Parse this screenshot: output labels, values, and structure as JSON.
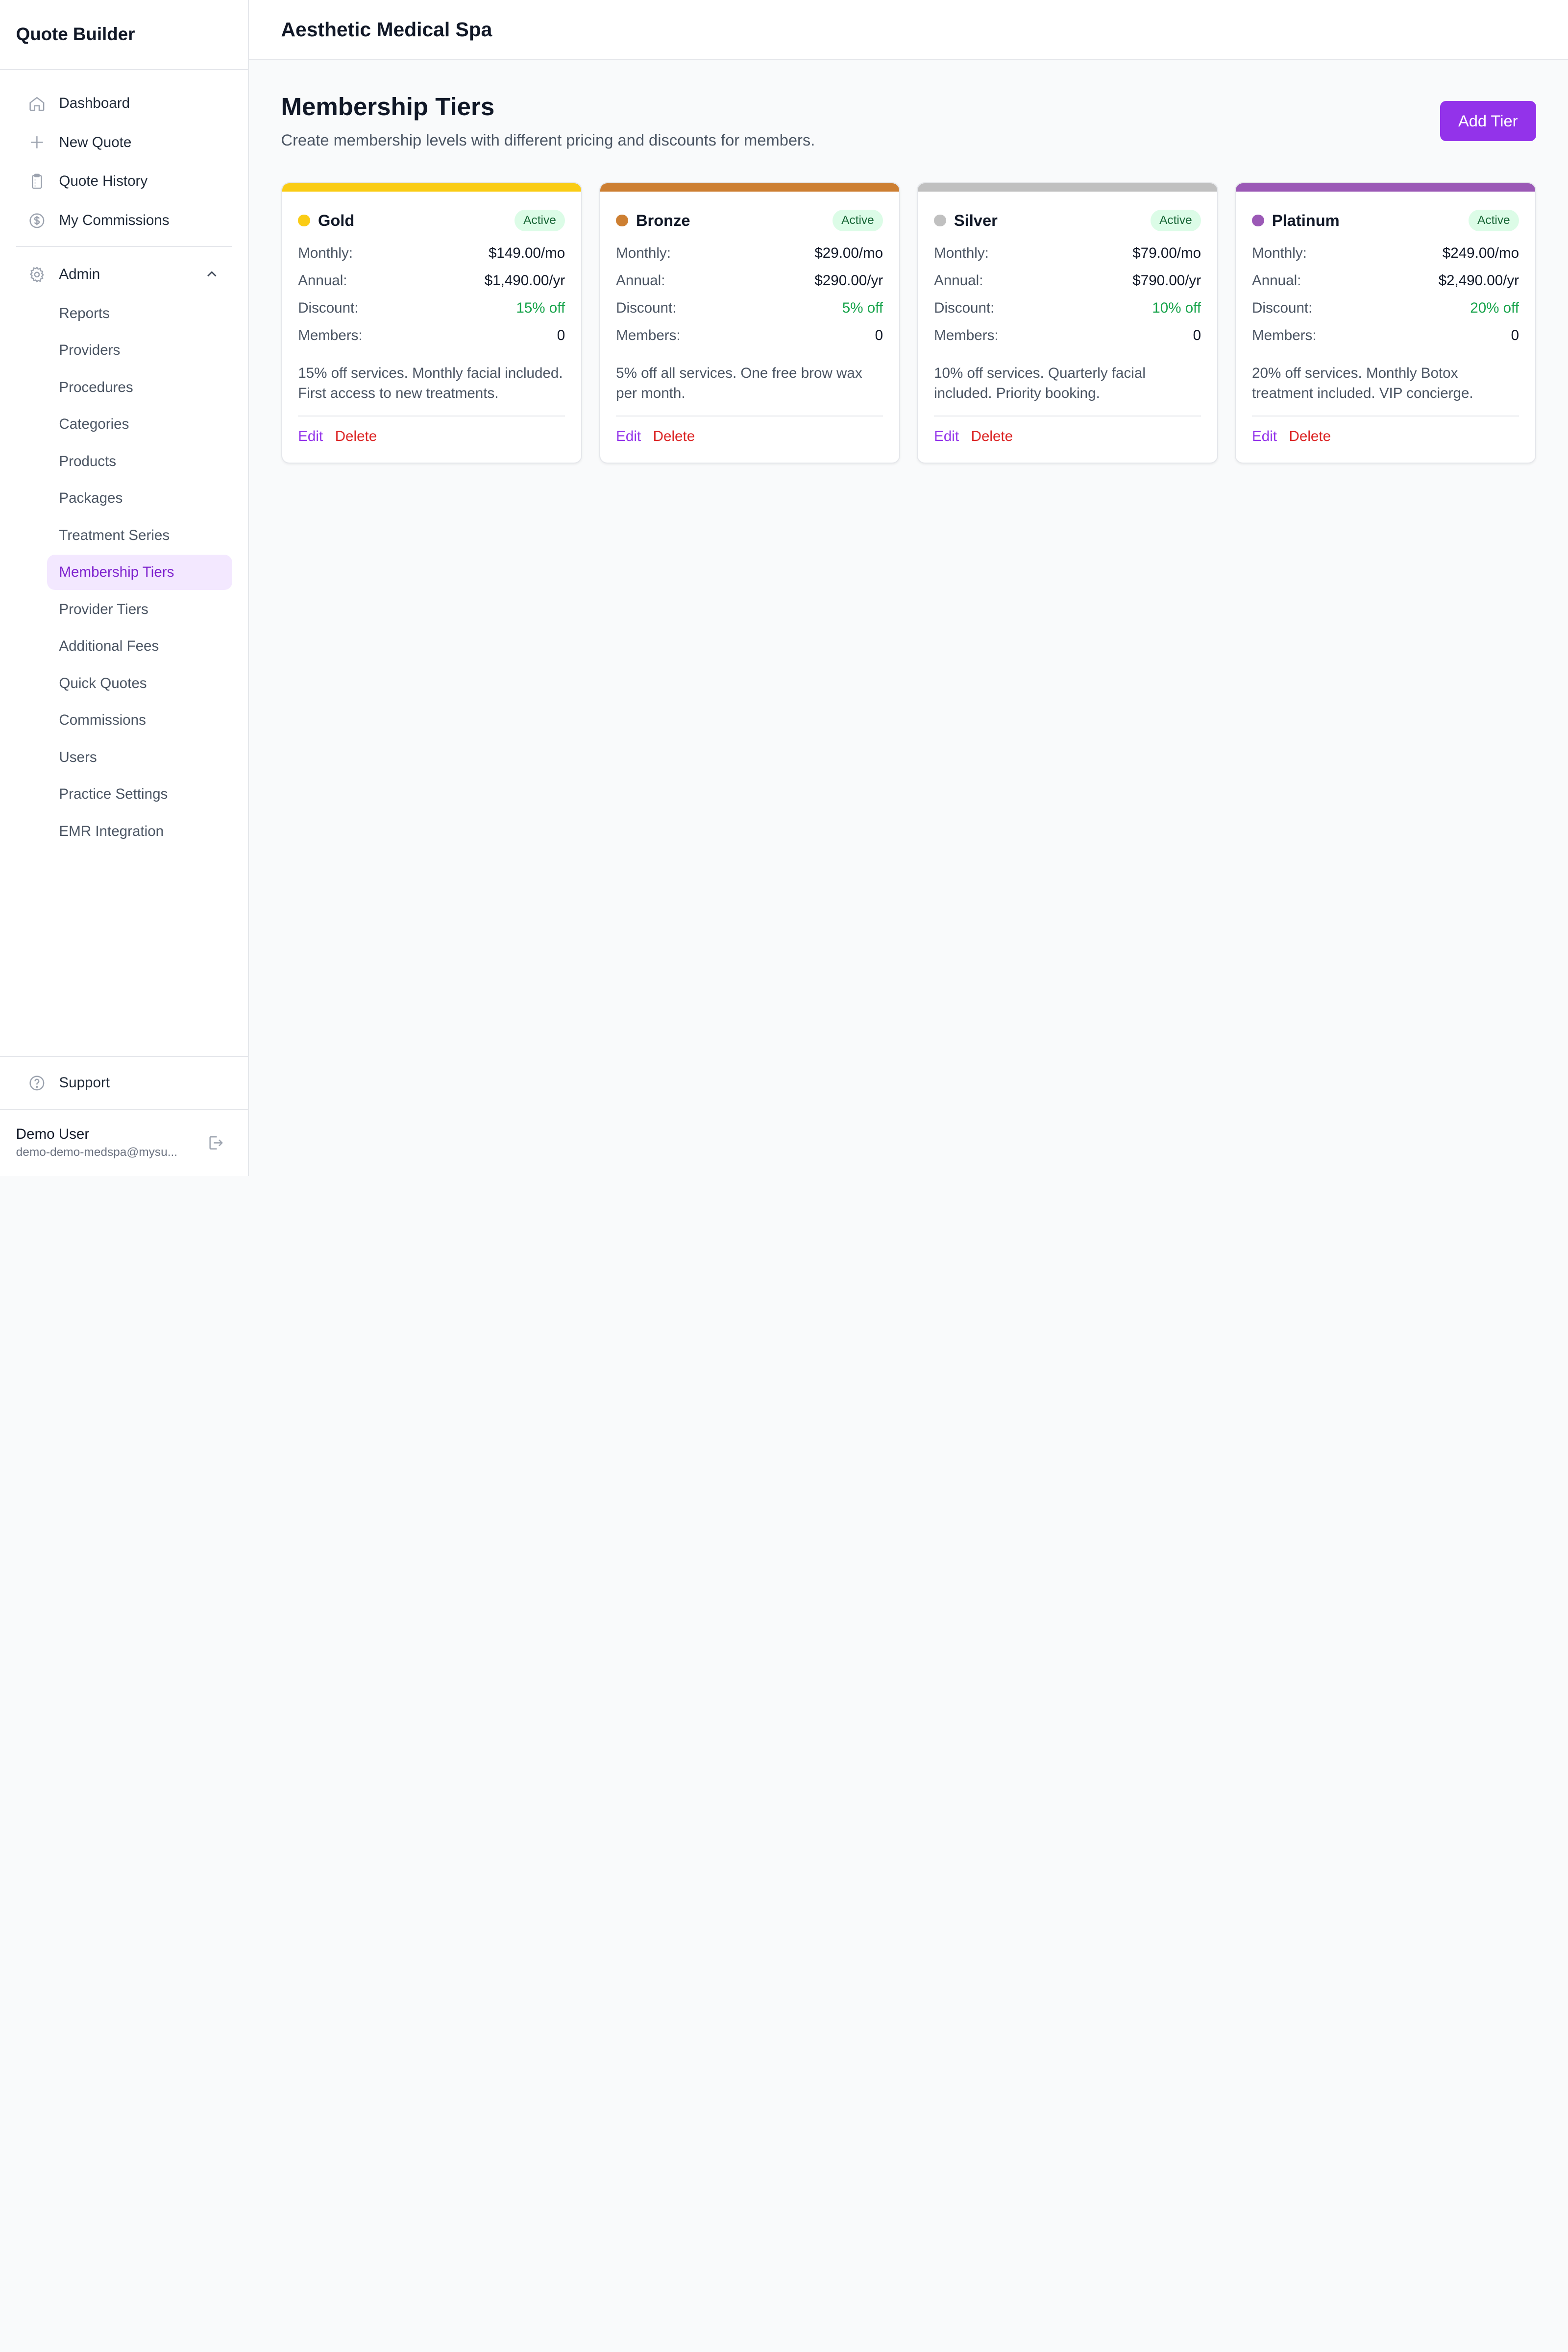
{
  "sidebar": {
    "brand": "Quote Builder",
    "nav": [
      {
        "label": "Dashboard",
        "icon": "home-icon"
      },
      {
        "label": "New Quote",
        "icon": "plus-icon"
      },
      {
        "label": "Quote History",
        "icon": "clipboard-icon"
      },
      {
        "label": "My Commissions",
        "icon": "dollar-icon"
      }
    ],
    "admin_label": "Admin",
    "admin_items": [
      "Reports",
      "Providers",
      "Procedures",
      "Categories",
      "Products",
      "Packages",
      "Treatment Series",
      "Membership Tiers",
      "Provider Tiers",
      "Additional Fees",
      "Quick Quotes",
      "Commissions",
      "Users",
      "Practice Settings",
      "EMR Integration"
    ],
    "active_item": "Membership Tiers",
    "support_label": "Support",
    "user": {
      "name": "Demo User",
      "email": "demo-demo-medspa@mysu..."
    }
  },
  "header": {
    "title": "Aesthetic Medical Spa"
  },
  "page": {
    "title": "Membership Tiers",
    "subtitle": "Create membership levels with different pricing and discounts for members.",
    "add_label": "Add Tier"
  },
  "labels": {
    "monthly": "Monthly:",
    "annual": "Annual:",
    "discount": "Discount:",
    "members": "Members:",
    "edit": "Edit",
    "delete": "Delete"
  },
  "colors": {
    "accent": "#9333ea",
    "danger": "#dc2626",
    "success": "#16a34a"
  },
  "tiers": [
    {
      "name": "Gold",
      "color": "#facc15",
      "status": "Active",
      "monthly": "$149.00/mo",
      "annual": "$1,490.00/yr",
      "discount": "15% off",
      "members": "0",
      "description": "15% off services. Monthly facial included. First access to new treatments."
    },
    {
      "name": "Bronze",
      "color": "#cd7f32",
      "status": "Active",
      "monthly": "$29.00/mo",
      "annual": "$290.00/yr",
      "discount": "5% off",
      "members": "0",
      "description": "5% off all services. One free brow wax per month."
    },
    {
      "name": "Silver",
      "color": "#c0c0c0",
      "status": "Active",
      "monthly": "$79.00/mo",
      "annual": "$790.00/yr",
      "discount": "10% off",
      "members": "0",
      "description": "10% off services. Quarterly facial included. Priority booking."
    },
    {
      "name": "Platinum",
      "color": "#9b59b6",
      "status": "Active",
      "monthly": "$249.00/mo",
      "annual": "$2,490.00/yr",
      "discount": "20% off",
      "members": "0",
      "description": "20% off services. Monthly Botox treatment included. VIP concierge."
    }
  ]
}
